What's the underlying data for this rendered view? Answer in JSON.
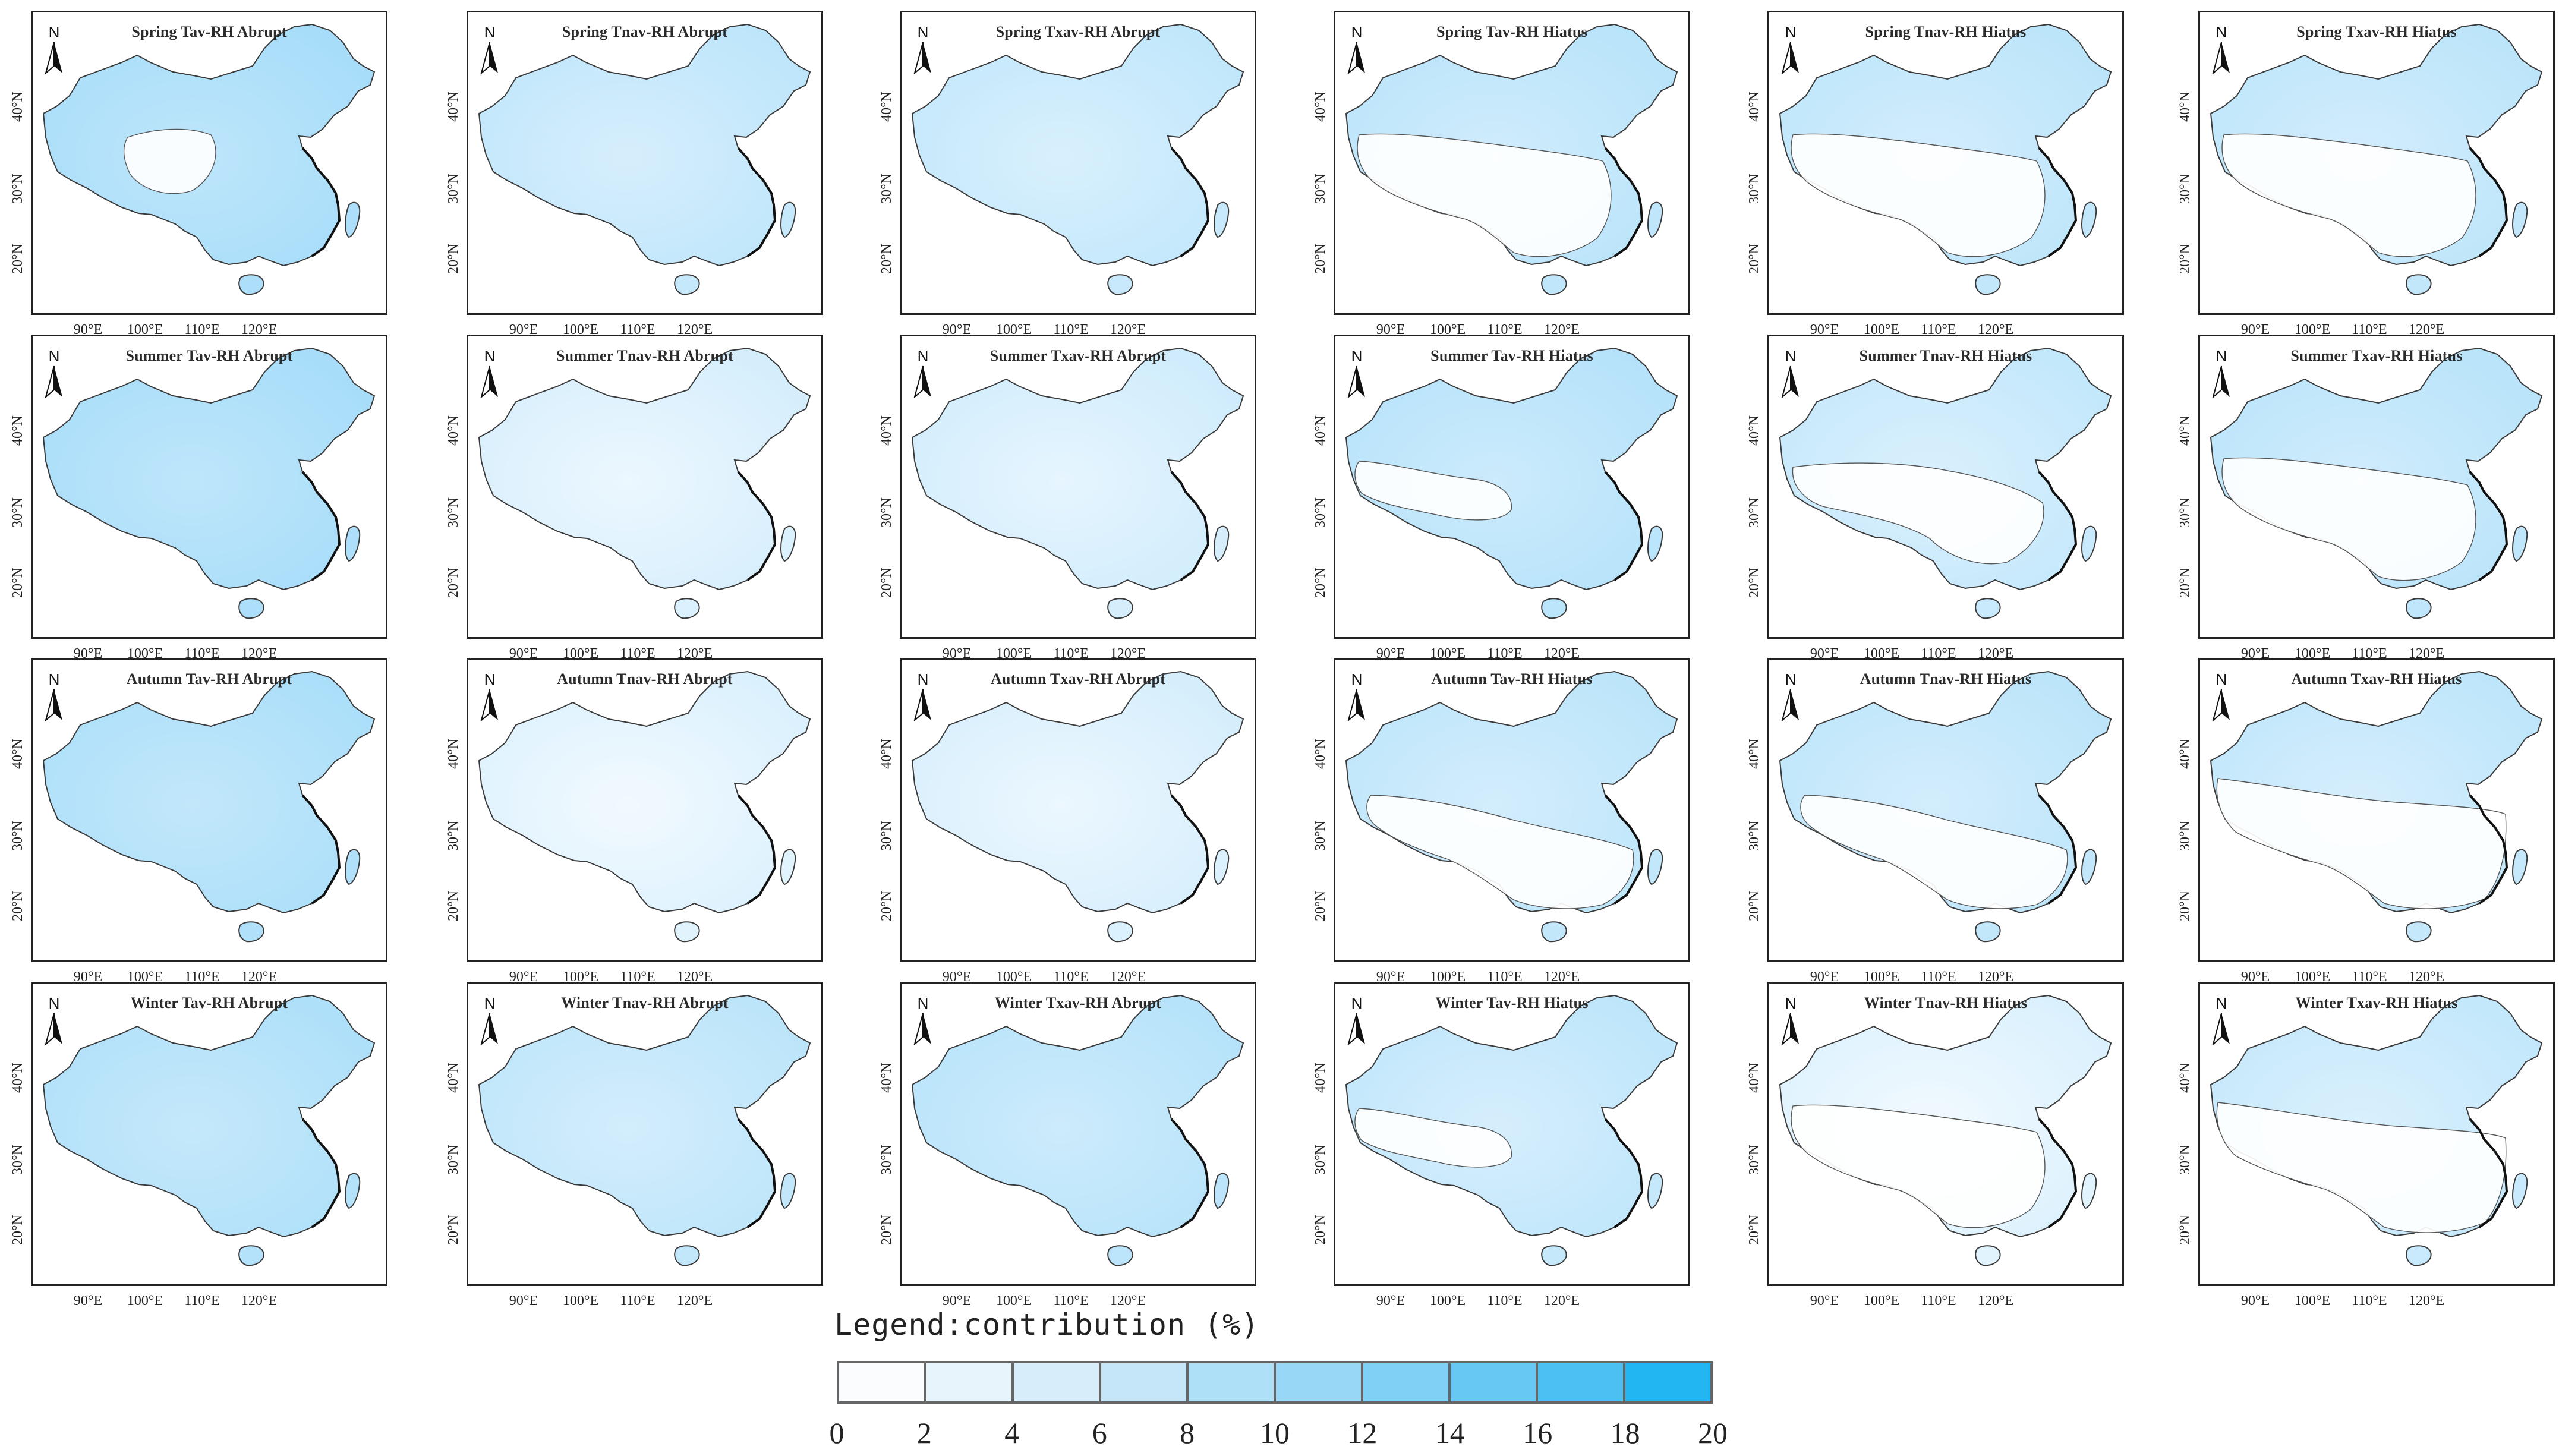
{
  "panels": [
    {
      "title": "Spring Tav-RH Abrupt",
      "level": 0.55,
      "low_zone": "tibet-patchy"
    },
    {
      "title": "Spring Tnav-RH Abrupt",
      "level": 0.38,
      "low_zone": "none"
    },
    {
      "title": "Spring Txav-RH Abrupt",
      "level": 0.36,
      "low_zone": "none"
    },
    {
      "title": "Spring Tav-RH Hiatus",
      "level": 0.42,
      "low_zone": "west-south"
    },
    {
      "title": "Spring Tnav-RH Hiatus",
      "level": 0.4,
      "low_zone": "west-south"
    },
    {
      "title": "Spring Txav-RH Hiatus",
      "level": 0.4,
      "low_zone": "west-south"
    },
    {
      "title": "Summer Tav-RH Abrupt",
      "level": 0.55,
      "low_zone": "none"
    },
    {
      "title": "Summer Tnav-RH Abrupt",
      "level": 0.22,
      "low_zone": "none"
    },
    {
      "title": "Summer Txav-RH Abrupt",
      "level": 0.26,
      "low_zone": "none"
    },
    {
      "title": "Summer Tav-RH Hiatus",
      "level": 0.45,
      "low_zone": "tibet"
    },
    {
      "title": "Summer Tnav-RH Hiatus",
      "level": 0.35,
      "low_zone": "central"
    },
    {
      "title": "Summer Txav-RH Hiatus",
      "level": 0.42,
      "low_zone": "west-south"
    },
    {
      "title": "Autumn Tav-RH Abrupt",
      "level": 0.52,
      "low_zone": "none"
    },
    {
      "title": "Autumn Tnav-RH Abrupt",
      "level": 0.18,
      "low_zone": "none"
    },
    {
      "title": "Autumn Txav-RH Abrupt",
      "level": 0.22,
      "low_zone": "none"
    },
    {
      "title": "Autumn Tav-RH Hiatus",
      "level": 0.4,
      "low_zone": "south"
    },
    {
      "title": "Autumn Tnav-RH Hiatus",
      "level": 0.4,
      "low_zone": "south"
    },
    {
      "title": "Autumn Txav-RH Hiatus",
      "level": 0.38,
      "low_zone": "south-wide"
    },
    {
      "title": "Winter Tav-RH Abrupt",
      "level": 0.5,
      "low_zone": "none"
    },
    {
      "title": "Winter Tnav-RH Abrupt",
      "level": 0.4,
      "low_zone": "none"
    },
    {
      "title": "Winter Txav-RH Abrupt",
      "level": 0.44,
      "low_zone": "none"
    },
    {
      "title": "Winter Tav-RH Hiatus",
      "level": 0.38,
      "low_zone": "tibet"
    },
    {
      "title": "Winter Tnav-RH Hiatus",
      "level": 0.18,
      "low_zone": "west-south"
    },
    {
      "title": "Winter Txav-RH Hiatus",
      "level": 0.35,
      "low_zone": "south-wide"
    }
  ],
  "axes": {
    "north_label": "N",
    "lon_ticks": [
      "90°E",
      "100°E",
      "110°E",
      "120°E"
    ],
    "lat_ticks": [
      "20°N",
      "30°N",
      "40°N"
    ]
  },
  "legend": {
    "title": "Legend:contribution (%)",
    "ticks": [
      "0",
      "2",
      "4",
      "6",
      "8",
      "10",
      "12",
      "14",
      "16",
      "18",
      "20"
    ],
    "colors": [
      "#fbfcfe",
      "#e8f4fc",
      "#d7edfa",
      "#c4e6f8",
      "#aee0f7",
      "#98d8f6",
      "#80d0f5",
      "#67c8f4",
      "#4cc0f3",
      "#22b7f2"
    ]
  },
  "colors": {
    "border": "#3a3a3a",
    "low_fill": "#ffffff",
    "coast": "#111111"
  }
}
